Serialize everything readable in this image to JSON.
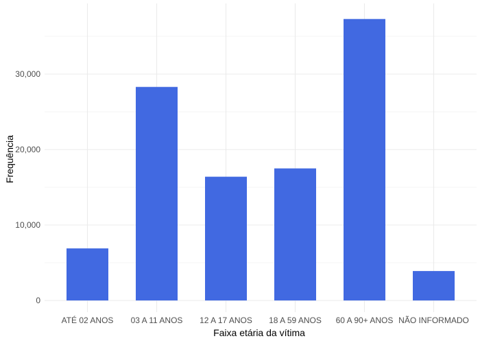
{
  "chart_data": {
    "type": "bar",
    "categories": [
      "ATÉ 02 ANOS",
      "03 A 11 ANOS",
      "12 A 17 ANOS",
      "18 A 59 ANOS",
      "60 A 90+ ANOS",
      "NÃO INFORMADO"
    ],
    "values": [
      6900,
      28300,
      16400,
      17500,
      37300,
      3900
    ],
    "title": "",
    "xlabel": "Faixa etária da vítima",
    "ylabel": "Frequência",
    "ylim": [
      0,
      39000
    ],
    "yticks": [
      0,
      10000,
      20000,
      30000
    ],
    "ytick_labels": [
      "0",
      "10,000",
      "20,000",
      "30,000"
    ],
    "grid": true,
    "bar_color": "#4169E1",
    "grid_color": "#EBEBEB",
    "legend": "none"
  }
}
